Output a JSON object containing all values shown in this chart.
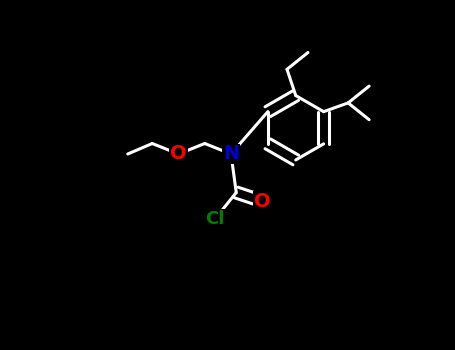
{
  "background": "#000000",
  "bond_color": "#000000",
  "atom_colors": {
    "N": "#0000CD",
    "O": "#FF0000",
    "Cl": "#008000",
    "C": "#000000"
  },
  "bond_width": 2.0,
  "font_size": 13
}
